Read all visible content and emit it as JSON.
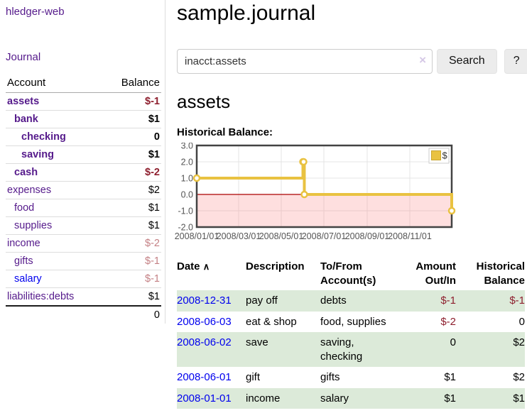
{
  "app": {
    "brand": "hledger-web",
    "nav_journal": "Journal"
  },
  "sidebar": {
    "headers": [
      "Account",
      "Balance"
    ],
    "rows": [
      {
        "name": "assets",
        "indent": 0,
        "bold": true,
        "link_class": "visited",
        "balance": "$-1",
        "balance_class": "neg"
      },
      {
        "name": "bank",
        "indent": 1,
        "bold": true,
        "link_class": "visited",
        "balance": "$1",
        "balance_class": ""
      },
      {
        "name": "checking",
        "indent": 2,
        "bold": true,
        "link_class": "visited",
        "balance": "0",
        "balance_class": ""
      },
      {
        "name": "saving",
        "indent": 2,
        "bold": true,
        "link_class": "visited",
        "balance": "$1",
        "balance_class": ""
      },
      {
        "name": "cash",
        "indent": 1,
        "bold": true,
        "link_class": "visited",
        "balance": "$-2",
        "balance_class": "neg"
      },
      {
        "name": "expenses",
        "indent": 0,
        "bold": false,
        "link_class": "visited",
        "balance": "$2",
        "balance_class": ""
      },
      {
        "name": "food",
        "indent": 1,
        "bold": false,
        "link_class": "visited",
        "balance": "$1",
        "balance_class": ""
      },
      {
        "name": "supplies",
        "indent": 1,
        "bold": false,
        "link_class": "visited",
        "balance": "$1",
        "balance_class": ""
      },
      {
        "name": "income",
        "indent": 0,
        "bold": false,
        "link_class": "visited",
        "balance": "$-2",
        "balance_class": "negmuted"
      },
      {
        "name": "gifts",
        "indent": 1,
        "bold": false,
        "link_class": "visited",
        "balance": "$-1",
        "balance_class": "negmuted"
      },
      {
        "name": "salary",
        "indent": 1,
        "bold": false,
        "link_class": "unvisited",
        "balance": "$-1",
        "balance_class": "negmuted"
      },
      {
        "name": "liabilities:debts",
        "indent": 0,
        "bold": false,
        "link_class": "visited",
        "balance": "$1",
        "balance_class": ""
      }
    ],
    "total": "0"
  },
  "main": {
    "title": "sample.journal",
    "search": {
      "value": "inacct:assets",
      "clear_icon": "×",
      "button_label": "Search",
      "help_label": "?"
    },
    "account_heading": "assets",
    "chart_label": "Historical Balance:",
    "register": {
      "sort_icon": "∧",
      "headers": [
        {
          "line1": "Date",
          "line2": "",
          "align": "left",
          "sortable": true
        },
        {
          "line1": "Description",
          "line2": "",
          "align": "left",
          "sortable": false
        },
        {
          "line1": "To/From",
          "line2": "Account(s)",
          "align": "left",
          "sortable": false
        },
        {
          "line1": "Amount",
          "line2": "Out/In",
          "align": "right",
          "sortable": false
        },
        {
          "line1": "Historical",
          "line2": "Balance",
          "align": "right",
          "sortable": false
        }
      ],
      "rows": [
        {
          "date": "2008-12-31",
          "description": "pay off",
          "accounts": "debts",
          "amount": "$-1",
          "amount_class": "neg",
          "balance": "$-1",
          "balance_class": "neg"
        },
        {
          "date": "2008-06-03",
          "description": "eat & shop",
          "accounts": "food, supplies",
          "amount": "$-2",
          "amount_class": "neg",
          "balance": "0",
          "balance_class": ""
        },
        {
          "date": "2008-06-02",
          "description": "save",
          "accounts": "saving, checking",
          "amount": "0",
          "amount_class": "",
          "balance": "$2",
          "balance_class": ""
        },
        {
          "date": "2008-06-01",
          "description": "gift",
          "accounts": "gifts",
          "amount": "$1",
          "amount_class": "",
          "balance": "$2",
          "balance_class": ""
        },
        {
          "date": "2008-01-01",
          "description": "income",
          "accounts": "salary",
          "amount": "$1",
          "amount_class": "",
          "balance": "$1",
          "balance_class": ""
        }
      ]
    }
  },
  "chart_data": {
    "type": "line",
    "step": true,
    "title": "Historical Balance",
    "xlabel": "",
    "ylabel": "",
    "ylim": [
      -2,
      3
    ],
    "yticks": [
      3,
      2,
      1,
      0,
      -1,
      -2
    ],
    "ytick_labels": [
      "3.0",
      "2.0",
      "1.0",
      "0.0",
      "-1.0",
      "-2.0"
    ],
    "x_range": [
      "2008-01-01",
      "2008-12-31"
    ],
    "xticks": [
      {
        "date": "2008-01-01",
        "label": "2008/01/01",
        "grid": false
      },
      {
        "date": "2008-03-01",
        "label": "2008/03/01",
        "grid": true
      },
      {
        "date": "2008-05-01",
        "label": "2008/05/01",
        "grid": true
      },
      {
        "date": "2008-07-01",
        "label": "2008/07/01",
        "grid": true
      },
      {
        "date": "2008-09-01",
        "label": "2008/09/01",
        "grid": true
      },
      {
        "date": "2008-11-01",
        "label": "2008/11/01",
        "grid": true
      }
    ],
    "series": [
      {
        "name": "$",
        "color": "#e9c241",
        "points": [
          [
            "2008-01-01",
            1
          ],
          [
            "2008-06-01",
            2
          ],
          [
            "2008-06-02",
            2
          ],
          [
            "2008-06-03",
            0
          ],
          [
            "2008-12-31",
            -1
          ]
        ]
      }
    ],
    "legend": {
      "position": "top-right",
      "label": "$"
    },
    "grid_on": true,
    "grid_color": "#e4e4e4",
    "border_color": "#434343",
    "zero_line_color": "#aa0000",
    "negative_fill": "rgba(250,140,140,0.28)",
    "axis_text_color": "#545454",
    "marker_fill": "#ffffff"
  }
}
